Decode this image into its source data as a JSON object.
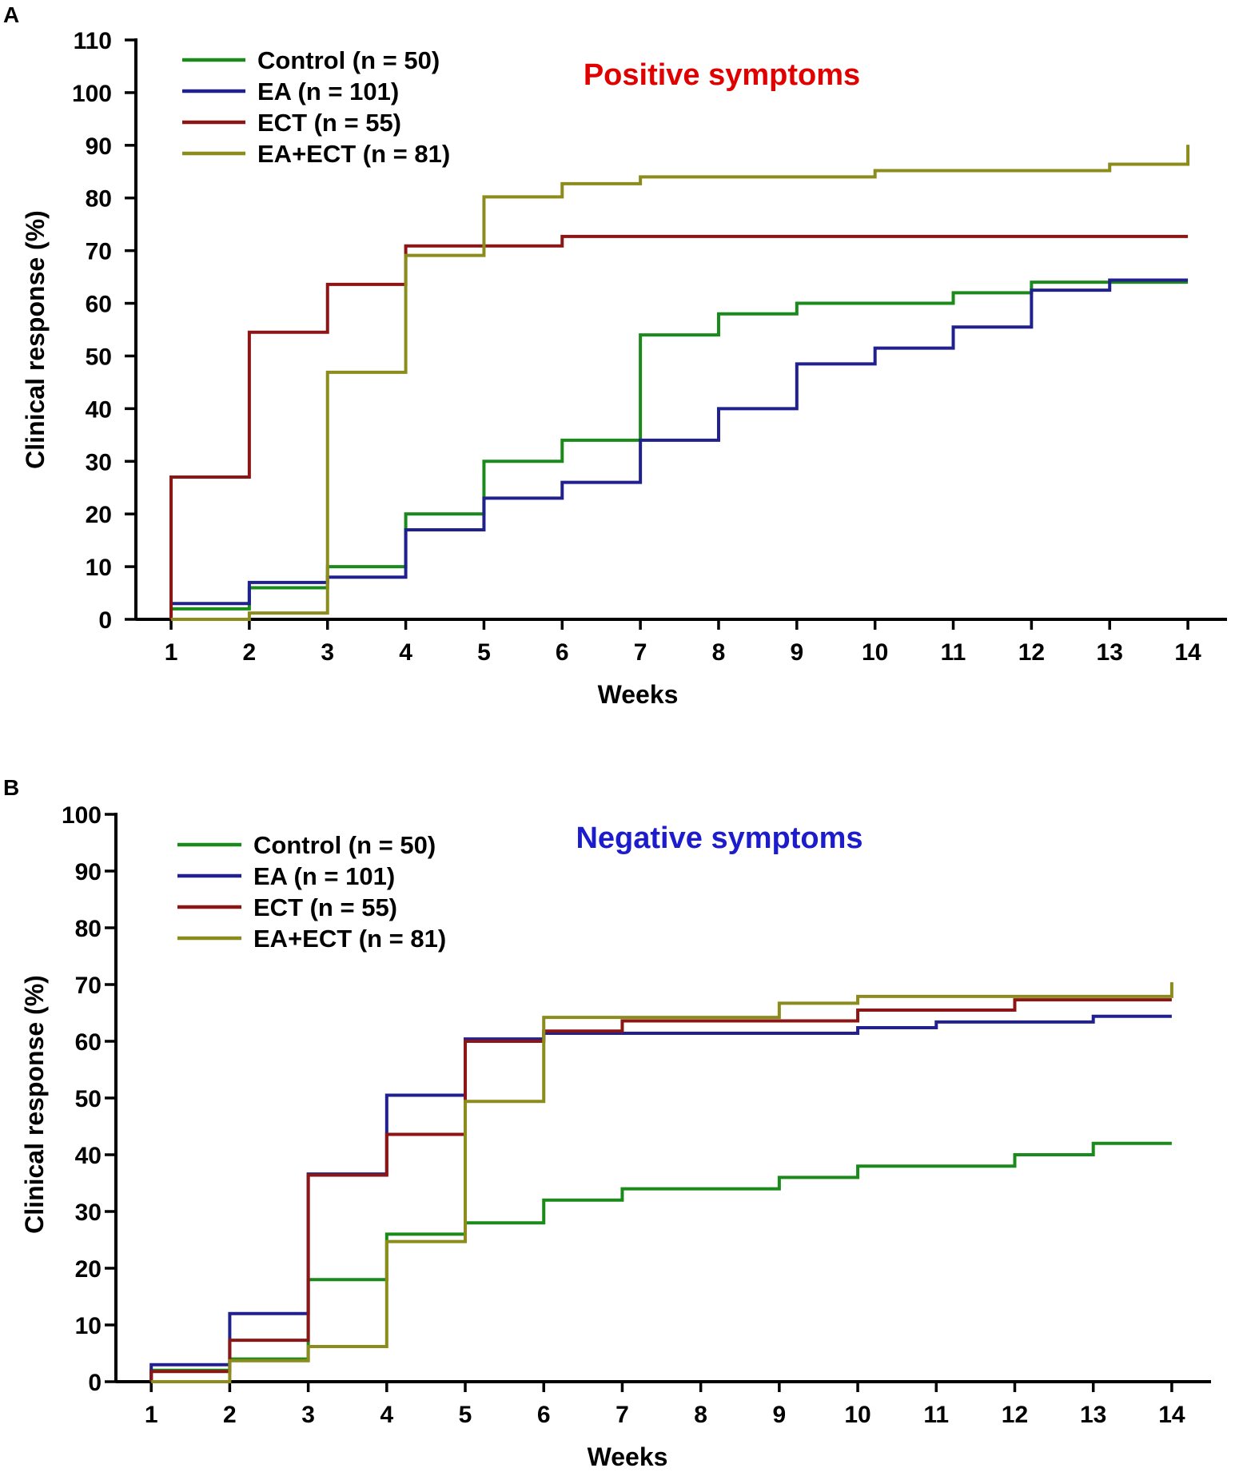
{
  "chart_data": [
    {
      "type": "line",
      "step": true,
      "panel_label": "A",
      "title": "Positive symptoms",
      "title_color": "#e00000",
      "xlabel": "Weeks",
      "ylabel": "Clinical response (%)",
      "x": [
        1,
        2,
        3,
        4,
        5,
        6,
        7,
        8,
        9,
        10,
        11,
        12,
        13,
        14
      ],
      "x_ticks": [
        "1",
        "2",
        "3",
        "4",
        "5",
        "6",
        "7",
        "8",
        "9",
        "10",
        "11",
        "12",
        "13",
        "14"
      ],
      "y_ticks": [
        "0",
        "10",
        "20",
        "30",
        "40",
        "50",
        "60",
        "70",
        "80",
        "90",
        "100",
        "110"
      ],
      "xlim": [
        0.55,
        14.5
      ],
      "ylim": [
        0,
        110
      ],
      "legend_position": "top-left",
      "series": [
        {
          "name": "Control (n = 50)",
          "color": "#1a8a1a",
          "values": [
            2,
            6,
            10,
            20,
            30,
            34,
            54,
            58,
            60,
            60,
            62,
            64,
            64,
            64
          ]
        },
        {
          "name": "EA (n = 101)",
          "color": "#20208e",
          "values": [
            3,
            7,
            8,
            17,
            23,
            26,
            34,
            40,
            48.5,
            51.5,
            55.5,
            62.5,
            64.4,
            64.4
          ]
        },
        {
          "name": "ECT (n = 55)",
          "color": "#8c1616",
          "values": [
            27,
            54.5,
            63.6,
            70.9,
            70.9,
            72.7,
            72.7,
            72.7,
            72.7,
            72.7,
            72.7,
            72.7,
            72.7,
            72.7
          ]
        },
        {
          "name": "EA+ECT (n = 81)",
          "color": "#8c8c1c",
          "values": [
            0,
            1.2,
            46.9,
            69.1,
            80.2,
            82.7,
            84,
            84,
            84,
            85.2,
            85.2,
            85.2,
            86.4,
            90.1
          ]
        }
      ]
    },
    {
      "type": "line",
      "step": true,
      "panel_label": "B",
      "title": "Negative symptoms",
      "title_color": "#1c1ccc",
      "xlabel": "Weeks",
      "ylabel": "Clinical response (%)",
      "x": [
        1,
        2,
        3,
        4,
        5,
        6,
        7,
        8,
        9,
        10,
        11,
        12,
        13,
        14
      ],
      "x_ticks": [
        "1",
        "2",
        "3",
        "4",
        "5",
        "6",
        "7",
        "8",
        "9",
        "10",
        "11",
        "12",
        "13",
        "14"
      ],
      "y_ticks": [
        "0",
        "10",
        "20",
        "30",
        "40",
        "50",
        "60",
        "70",
        "80",
        "90",
        "100"
      ],
      "xlim": [
        0.55,
        14.5
      ],
      "ylim": [
        0,
        100
      ],
      "legend_position": "top-left",
      "series": [
        {
          "name": "Control (n = 50)",
          "color": "#1a8a1a",
          "values": [
            2,
            4,
            18,
            26,
            28,
            32,
            34,
            34,
            36,
            38,
            38,
            40,
            42,
            42
          ]
        },
        {
          "name": "EA (n = 101)",
          "color": "#20208e",
          "values": [
            3,
            12,
            36.6,
            50.5,
            60.4,
            61.4,
            61.4,
            61.4,
            61.4,
            62.4,
            63.4,
            63.4,
            64.4,
            64.4
          ]
        },
        {
          "name": "ECT (n = 55)",
          "color": "#8c1616",
          "values": [
            1.8,
            7.3,
            36.4,
            43.6,
            60,
            61.8,
            63.6,
            63.6,
            63.6,
            65.5,
            65.5,
            67.3,
            67.3,
            67.3
          ]
        },
        {
          "name": "EA+ECT (n = 81)",
          "color": "#8c8c1c",
          "values": [
            0,
            3.7,
            6.2,
            24.7,
            49.4,
            64.2,
            64.2,
            64.2,
            66.7,
            67.9,
            67.9,
            67.9,
            67.9,
            70.4
          ]
        }
      ]
    }
  ]
}
